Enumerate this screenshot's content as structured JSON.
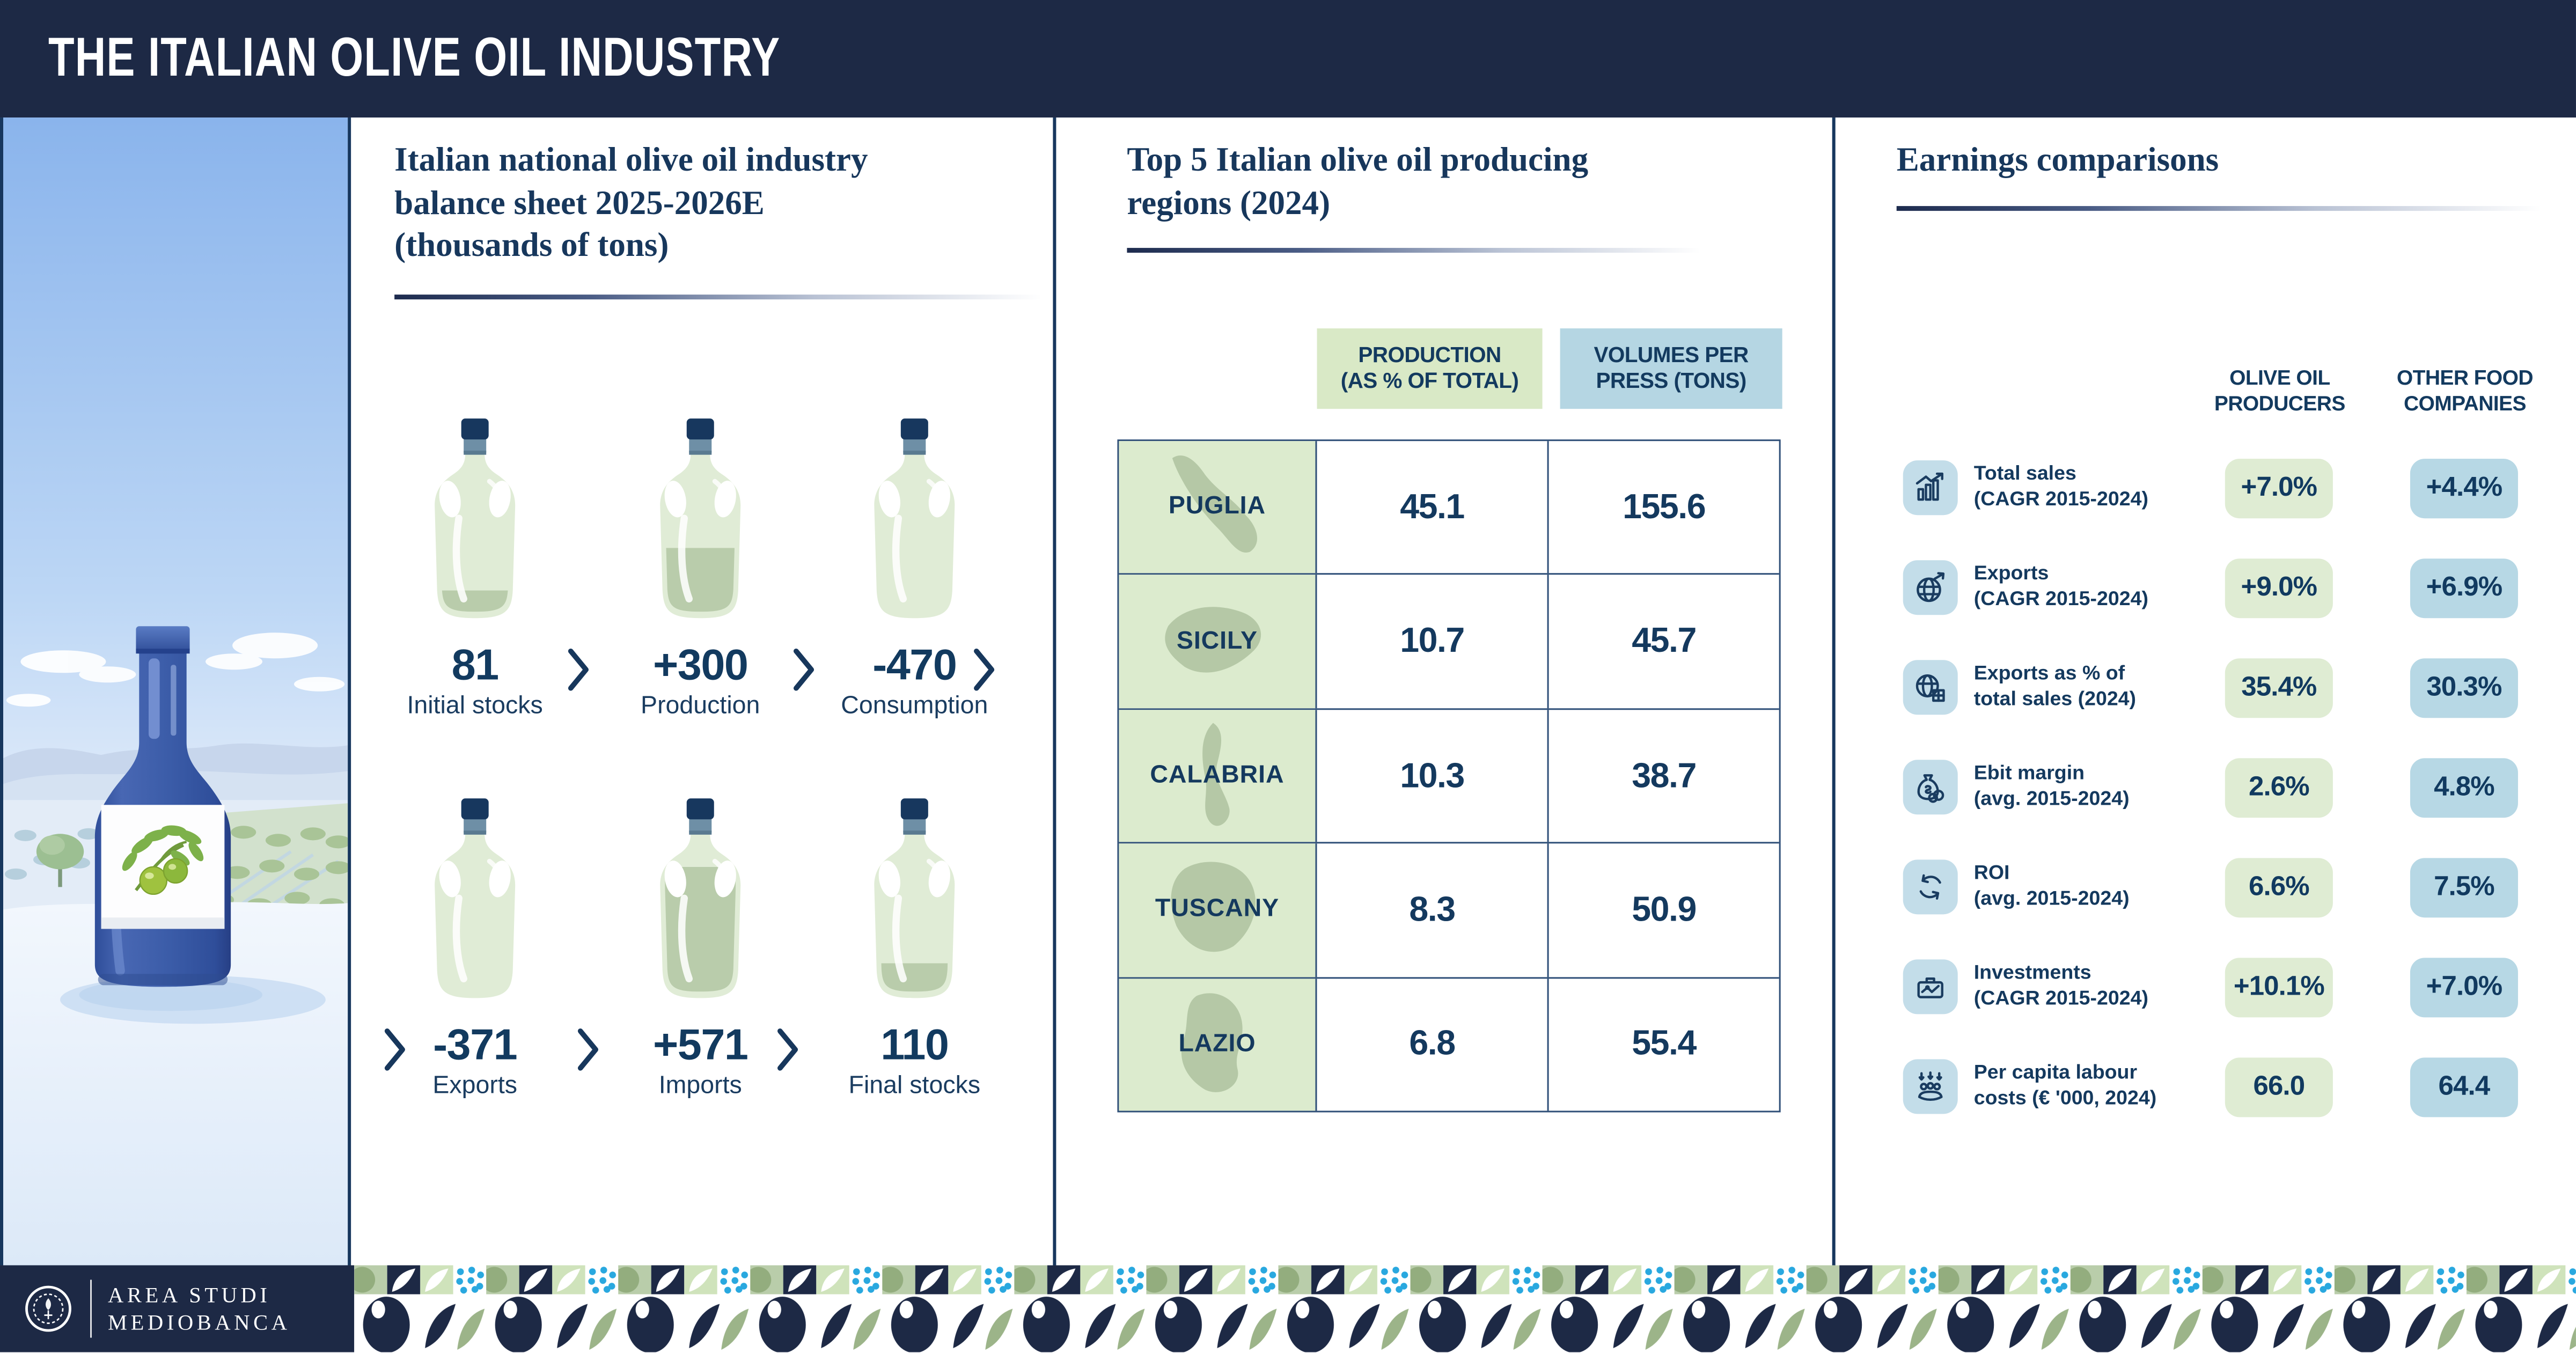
{
  "header": {
    "title": "THE ITALIAN OLIVE OIL INDUSTRY"
  },
  "colors": {
    "navy": "#1d2945",
    "heading_navy": "#17375c",
    "value_navy": "#123a5f",
    "table_green": "#dcebce",
    "header_box_green": "#d9e9c6",
    "header_box_blue": "#b5d6e3",
    "pill_green": "#dfecd3",
    "pill_blue": "#b7d8e5",
    "icon_tile_blue": "#c3dde9",
    "pattern_dots_blue": "#29a8df",
    "silhouette_green": "#b3c7a4",
    "bottle_green": "#e0ecd6",
    "oil_fill_green": "#b9ccab",
    "bottle_cap": "#17375e",
    "bottle_ring": "#6e8fa6"
  },
  "balance_panel": {
    "heading": "Italian national olive oil industry\nbalance sheet 2025-2026E\n(thousands of tons)",
    "items": [
      {
        "value": "81",
        "label": "Initial stocks",
        "fill": 0.15
      },
      {
        "value": "+300",
        "label": "Production",
        "fill": 0.45
      },
      {
        "value": "-470",
        "label": "Consumption",
        "fill": 0
      },
      {
        "value": "-371",
        "label": "Exports",
        "fill": 0
      },
      {
        "value": "+571",
        "label": "Imports",
        "fill": 0.88
      },
      {
        "value": "110",
        "label": "Final stocks",
        "fill": 0.2
      }
    ]
  },
  "regions_panel": {
    "heading": "Top 5 Italian olive oil producing\nregions (2024)",
    "col_production": "PRODUCTION\n(AS % OF TOTAL)",
    "col_volumes": "VOLUMES PER\nPRESS (TONS)",
    "rows": [
      {
        "region": "PUGLIA",
        "production": "45.1",
        "volumes": "155.6"
      },
      {
        "region": "SICILY",
        "production": "10.7",
        "volumes": "45.7"
      },
      {
        "region": "CALABRIA",
        "production": "10.3",
        "volumes": "38.7"
      },
      {
        "region": "TUSCANY",
        "production": "8.3",
        "volumes": "50.9"
      },
      {
        "region": "LAZIO",
        "production": "6.8",
        "volumes": "55.4"
      }
    ]
  },
  "earnings_panel": {
    "heading": "Earnings comparisons",
    "col1": "OLIVE OIL\nPRODUCERS",
    "col2": "OTHER FOOD\nCOMPANIES",
    "rows": [
      {
        "icon": "sales-growth-icon",
        "label": "Total sales\n(CAGR 2015-2024)",
        "olive_oil": "+7.0%",
        "other_food": "+4.4%"
      },
      {
        "icon": "globe-export-icon",
        "label": "Exports\n(CAGR 2015-2024)",
        "olive_oil": "+9.0%",
        "other_food": "+6.9%"
      },
      {
        "icon": "globe-share-icon",
        "label": "Exports as % of\ntotal sales (2024)",
        "olive_oil": "35.4%",
        "other_food": "30.3%"
      },
      {
        "icon": "money-bag-icon",
        "label": "Ebit margin\n(avg. 2015-2024)",
        "olive_oil": "2.6%",
        "other_food": "4.8%"
      },
      {
        "icon": "roi-cycle-icon",
        "label": "ROI\n(avg. 2015-2024)",
        "olive_oil": "6.6%",
        "other_food": "7.5%"
      },
      {
        "icon": "investments-icon",
        "label": "Investments\n(CAGR 2015-2024)",
        "olive_oil": "+10.1%",
        "other_food": "+7.0%"
      },
      {
        "icon": "labour-cost-icon",
        "label": "Per capita labour\ncosts (€ '000, 2024)",
        "olive_oil": "66.0",
        "other_food": "64.4"
      }
    ]
  },
  "footer": {
    "brand": "AREA STUDI\nMEDIOBANCA"
  },
  "chart_data": [
    {
      "type": "bar",
      "title": "Italian national olive oil industry balance sheet 2025-2026E (thousands of tons)",
      "categories": [
        "Initial stocks",
        "Production",
        "Consumption",
        "Exports",
        "Imports",
        "Final stocks"
      ],
      "values": [
        81,
        300,
        -470,
        -371,
        571,
        110
      ],
      "xlabel": "",
      "ylabel": "thousands of tons",
      "layout": "waterfall flow shown as six amphora bottles with fill levels and chevron arrows"
    },
    {
      "type": "table",
      "title": "Top 5 Italian olive oil producing regions (2024)",
      "categories": [
        "Puglia",
        "Sicily",
        "Calabria",
        "Tuscany",
        "Lazio"
      ],
      "series": [
        {
          "name": "Production (as % of total)",
          "values": [
            45.1,
            10.7,
            10.3,
            8.3,
            6.8
          ]
        },
        {
          "name": "Volumes per press (tons)",
          "values": [
            155.6,
            45.7,
            38.7,
            50.9,
            55.4
          ]
        }
      ]
    },
    {
      "type": "table",
      "title": "Earnings comparisons",
      "categories": [
        "Total sales (CAGR 2015-2024)",
        "Exports (CAGR 2015-2024)",
        "Exports as % of total sales (2024)",
        "Ebit margin (avg. 2015-2024)",
        "ROI (avg. 2015-2024)",
        "Investments (CAGR 2015-2024)",
        "Per capita labour costs (€ '000, 2024)"
      ],
      "series": [
        {
          "name": "Olive oil producers",
          "values": [
            7.0,
            9.0,
            35.4,
            2.6,
            6.6,
            10.1,
            66.0
          ]
        },
        {
          "name": "Other food companies",
          "values": [
            4.4,
            6.9,
            30.3,
            4.8,
            7.5,
            7.0,
            64.4
          ]
        }
      ],
      "units": [
        "% CAGR",
        "% CAGR",
        "%",
        "%",
        "%",
        "% CAGR",
        "€ '000"
      ]
    }
  ]
}
